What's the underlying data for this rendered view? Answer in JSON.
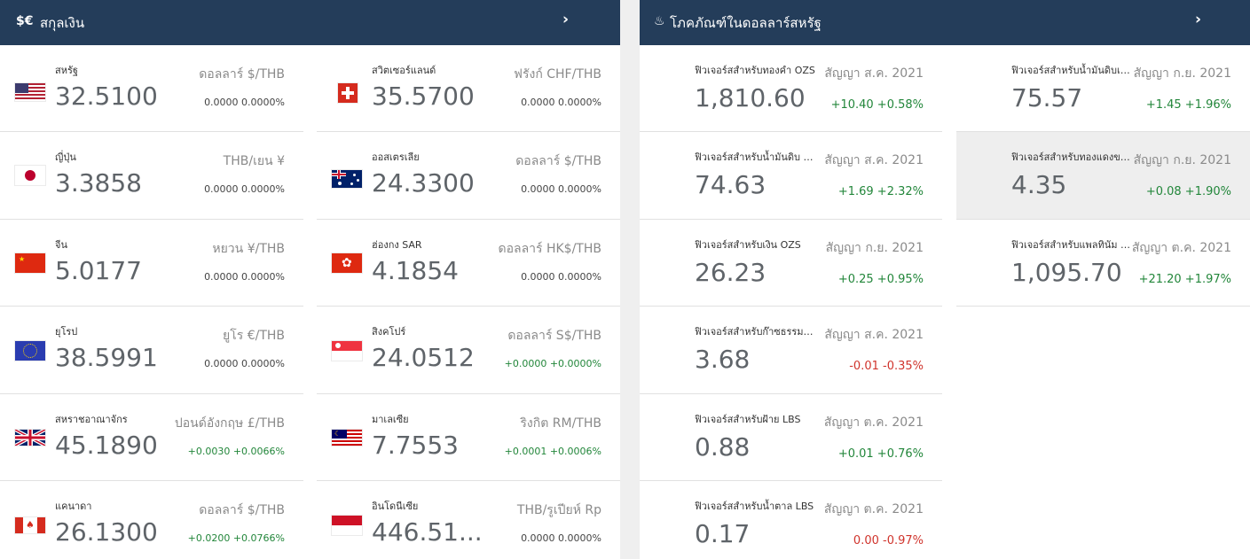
{
  "currency_panel": {
    "icon_text": "$€",
    "title": "สกุลเงิน",
    "chevron": "›",
    "items": [
      {
        "name": "สหรัฐ",
        "value": "32.5100",
        "unit": "ดอลลาร์ $/THB",
        "change": "0.0000 0.0000%",
        "dir": "flat",
        "flag": "us-flag-icon"
      },
      {
        "name": "สวิตเซอร์แลนด์",
        "value": "35.5700",
        "unit": "ฟรังก์ CHF/THB",
        "change": "0.0000 0.0000%",
        "dir": "flat",
        "flag": "switzerland-flag-icon"
      },
      {
        "name": "ญี่ปุ่น",
        "value": "3.3858",
        "unit": "THB/เยน ¥",
        "change": "0.0000 0.0000%",
        "dir": "flat",
        "flag": "japan-flag-icon"
      },
      {
        "name": "ออสเตรเลีย",
        "value": "24.3300",
        "unit": "ดอลลาร์ $/THB",
        "change": "0.0000 0.0000%",
        "dir": "flat",
        "flag": "australia-flag-icon"
      },
      {
        "name": "จีน",
        "value": "5.0177",
        "unit": "หยวน ¥/THB",
        "change": "0.0000 0.0000%",
        "dir": "flat",
        "flag": "china-flag-icon"
      },
      {
        "name": "ฮ่องกง SAR",
        "value": "4.1854",
        "unit": "ดอลลาร์ HK$/THB",
        "change": "0.0000 0.0000%",
        "dir": "flat",
        "flag": "hong-kong-flag-icon"
      },
      {
        "name": "ยุโรป",
        "value": "38.5991",
        "unit": "ยูโร €/THB",
        "change": "0.0000 0.0000%",
        "dir": "flat",
        "flag": "eu-flag-icon"
      },
      {
        "name": "สิงคโปร์",
        "value": "24.0512",
        "unit": "ดอลลาร์ S$/THB",
        "change": "+0.0000 +0.0000%",
        "dir": "pos",
        "flag": "singapore-flag-icon"
      },
      {
        "name": "สหราชอาณาจักร",
        "value": "45.1890",
        "unit": "ปอนด์อังกฤษ £/THB",
        "change": "+0.0030 +0.0066%",
        "dir": "pos",
        "flag": "uk-flag-icon"
      },
      {
        "name": "มาเลเซีย",
        "value": "7.7553",
        "unit": "ริงกิต RM/THB",
        "change": "+0.0001 +0.0006%",
        "dir": "pos",
        "flag": "malaysia-flag-icon"
      },
      {
        "name": "แคนาดา",
        "value": "26.1300",
        "unit": "ดอลลาร์ $/THB",
        "change": "+0.0200 +0.0766%",
        "dir": "pos",
        "flag": "canada-flag-icon"
      },
      {
        "name": "อินโดนีเซีย",
        "value": "446.51...",
        "unit": "THB/รูเปียห์ Rp",
        "change": "0.0000 0.0000%",
        "dir": "flat",
        "flag": "indonesia-flag-icon"
      }
    ]
  },
  "commodity_panel": {
    "icon_text": "♨",
    "title": "โภคภัณฑ์ในดอลลาร์สหรัฐ",
    "chevron": "›",
    "items": [
      {
        "name": "ฟิวเจอร์สสำหรับทองคำ OZS",
        "value": "1,810.60",
        "contract": "สัญญา ส.ค. 2021",
        "change": "+10.40 +0.58%",
        "dir": "pos"
      },
      {
        "name": "ฟิวเจอร์สสำหรับน้ำมันดิบเบ...",
        "value": "75.57",
        "contract": "สัญญา ก.ย. 2021",
        "change": "+1.45 +1.96%",
        "dir": "pos"
      },
      {
        "name": "ฟิวเจอร์สสำหรับน้ำมันดิบ W...",
        "value": "74.63",
        "contract": "สัญญา ส.ค. 2021",
        "change": "+1.69 +2.32%",
        "dir": "pos"
      },
      {
        "name": "ฟิวเจอร์สสำหรับทองแดงของ...",
        "value": "4.35",
        "contract": "สัญญา ก.ย. 2021",
        "change": "+0.08 +1.90%",
        "dir": "pos"
      },
      {
        "name": "ฟิวเจอร์สสำหรับเงิน OZS",
        "value": "26.23",
        "contract": "สัญญา ก.ย. 2021",
        "change": "+0.25 +0.95%",
        "dir": "pos"
      },
      {
        "name": "ฟิวเจอร์สสำหรับแพลทินัม O...",
        "value": "1,095.70",
        "contract": "สัญญา ต.ค. 2021",
        "change": "+21.20 +1.97%",
        "dir": "pos"
      },
      {
        "name": "ฟิวเจอร์สสำหรับก๊าซธรรมชา...",
        "value": "3.68",
        "contract": "สัญญา ส.ค. 2021",
        "change": "-0.01 -0.35%",
        "dir": "neg"
      },
      {
        "name": "ฟิวเจอร์สสำหรับฝ้าย LBS",
        "value": "0.88",
        "contract": "สัญญา ต.ค. 2021",
        "change": "+0.01 +0.76%",
        "dir": "pos"
      },
      {
        "name": "ฟิวเจอร์สสำหรับน้ำตาล LBS",
        "value": "0.17",
        "contract": "สัญญา ต.ค. 2021",
        "change": "0.00 -0.97%",
        "dir": "neg"
      }
    ]
  }
}
